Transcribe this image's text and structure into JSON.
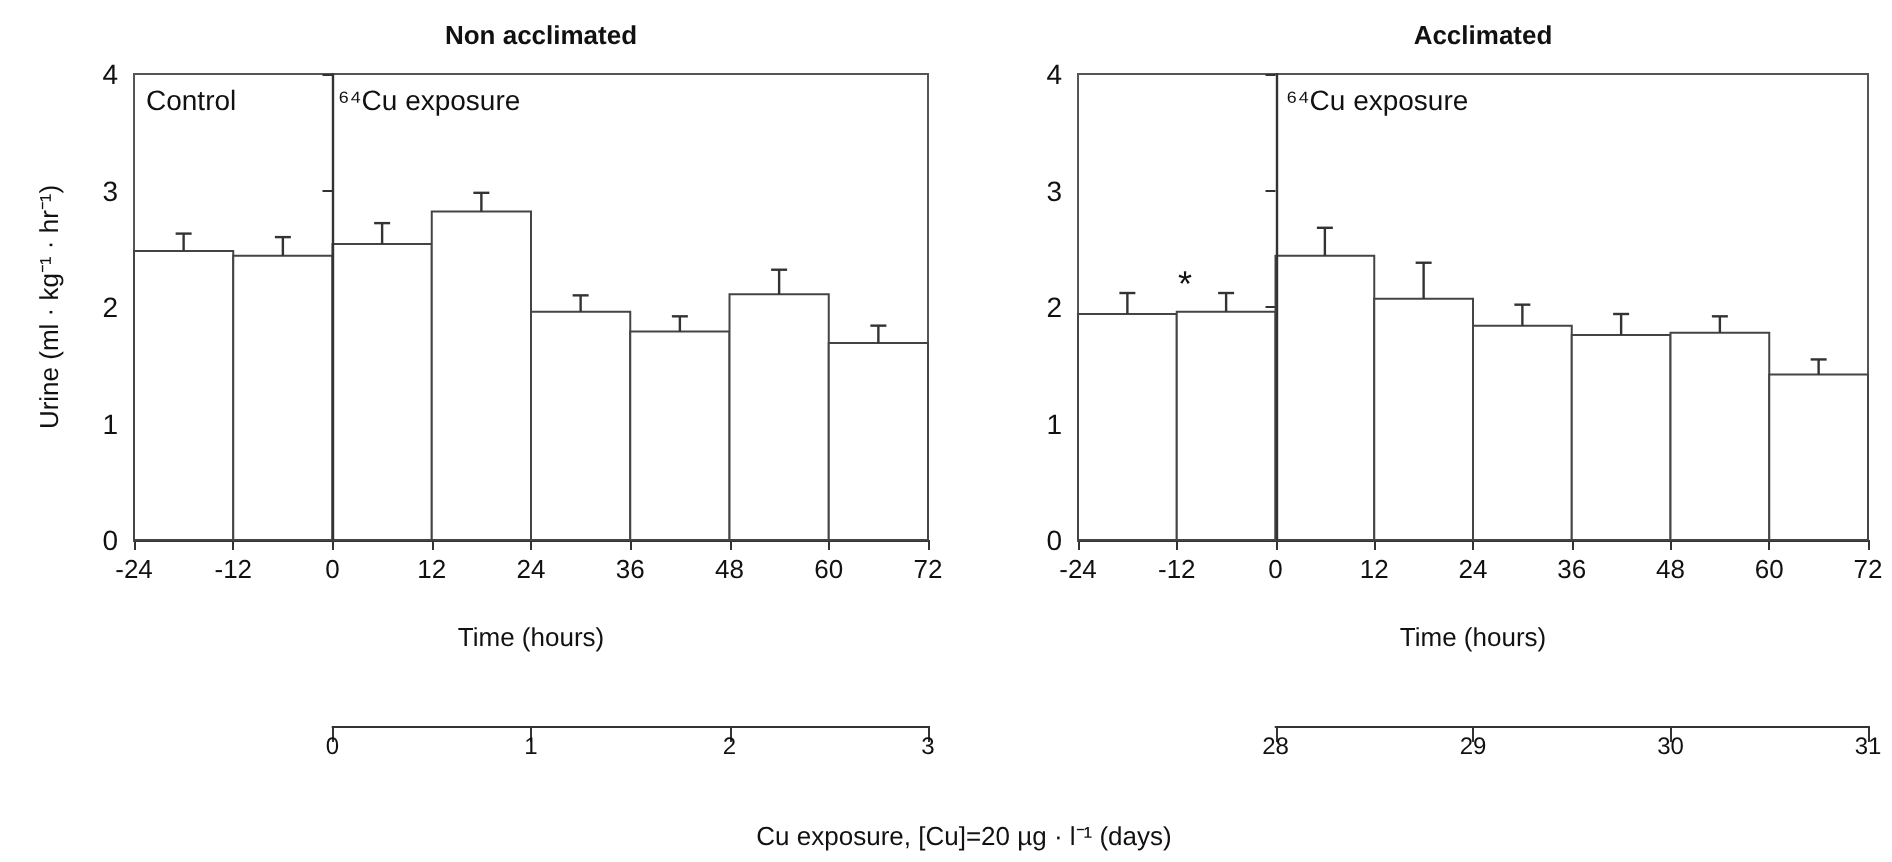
{
  "chart_data": [
    {
      "type": "histogram",
      "title": "Non acclimated",
      "xlabel": "Time (hours)",
      "ylabel": "Urine (ml · kg⁻¹ · hr⁻¹)",
      "x2label": "Cu exposure, [Cu]=20 µg · l⁻¹ (days)",
      "bins": [
        -24,
        -12,
        0,
        12,
        24,
        36,
        48,
        60,
        72
      ],
      "values": [
        2.48,
        2.44,
        2.54,
        2.82,
        1.96,
        1.79,
        2.11,
        1.69
      ],
      "errors": [
        [
          2.48,
          2.63
        ],
        [
          2.44,
          2.6
        ],
        [
          2.54,
          2.72
        ],
        [
          2.82,
          2.98
        ],
        [
          1.96,
          2.1
        ],
        [
          1.79,
          1.92
        ],
        [
          2.11,
          2.32
        ],
        [
          1.69,
          1.84
        ]
      ],
      "xlim": [
        -24,
        72
      ],
      "xticks": [
        -24,
        -12,
        0,
        12,
        24,
        36,
        48,
        60,
        72
      ],
      "ylim": [
        0,
        4
      ],
      "yticks": [
        0,
        1,
        2,
        3,
        4
      ],
      "x2lim": [
        0,
        3
      ],
      "x2ticks": [
        0,
        1,
        2,
        3
      ],
      "ref_lines": [
        {
          "axis": "x",
          "value": 0
        }
      ],
      "annotations": [
        "Control",
        "⁶⁴Cu exposure"
      ],
      "grid": false
    },
    {
      "type": "histogram",
      "title": "Acclimated",
      "xlabel": "Time (hours)",
      "bins": [
        -24,
        -12,
        0,
        12,
        24,
        36,
        48,
        60,
        72
      ],
      "values": [
        1.94,
        1.96,
        2.44,
        2.07,
        1.84,
        1.76,
        1.78,
        1.42
      ],
      "errors": [
        [
          1.94,
          2.12
        ],
        [
          1.96,
          2.12
        ],
        [
          2.44,
          2.68
        ],
        [
          2.07,
          2.38
        ],
        [
          1.84,
          2.02
        ],
        [
          1.76,
          1.94
        ],
        [
          1.78,
          1.92
        ],
        [
          1.42,
          1.55
        ]
      ],
      "xlim": [
        -24,
        72
      ],
      "xticks": [
        -24,
        -12,
        0,
        12,
        24,
        36,
        48,
        60,
        72
      ],
      "ylim": [
        0,
        4
      ],
      "yticks": [
        0,
        1,
        2,
        3,
        4
      ],
      "x2lim": [
        28,
        31
      ],
      "x2ticks": [
        28,
        29,
        30,
        31
      ],
      "ref_lines": [
        {
          "axis": "x",
          "value": 0
        }
      ],
      "annotations": [
        "⁶⁴Cu exposure",
        "*"
      ],
      "grid": false
    }
  ]
}
